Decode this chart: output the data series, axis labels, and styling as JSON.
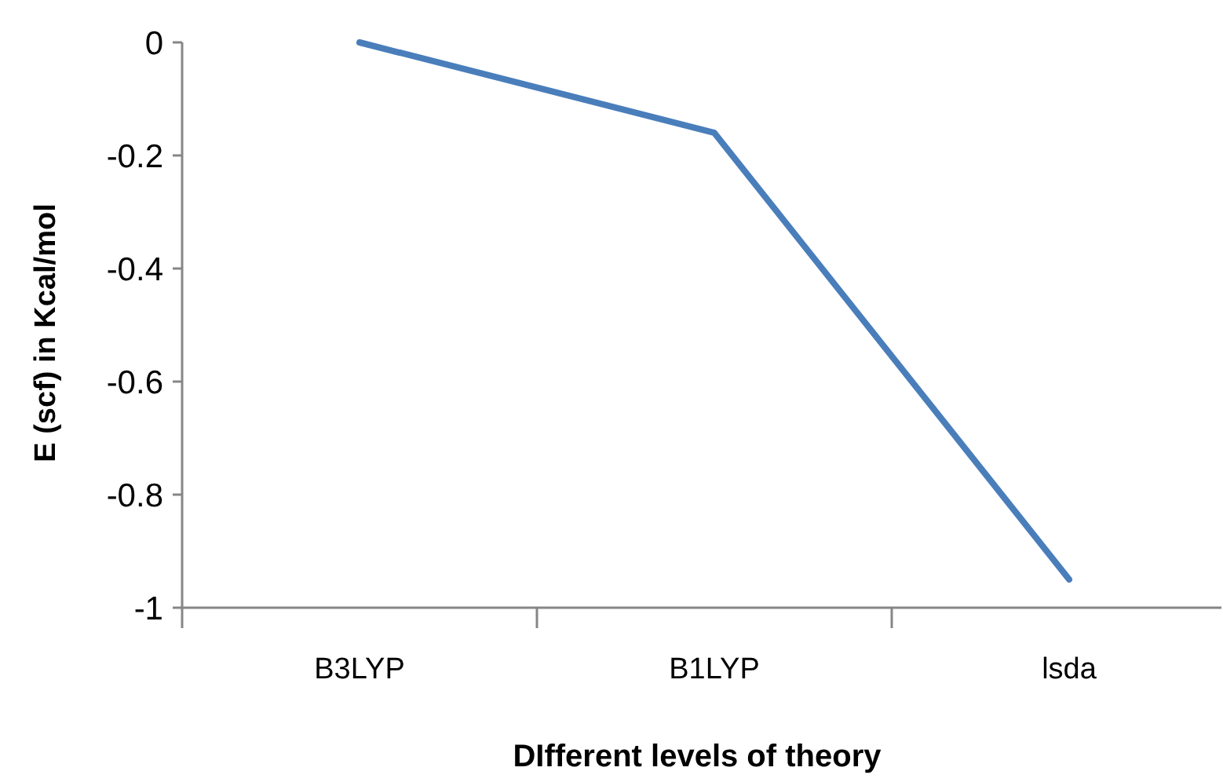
{
  "chart_data": {
    "type": "line",
    "xlabel": "DIfferent levels of theory",
    "ylabel": "E (scf) in Kcal/mol",
    "categories": [
      "B3LYP",
      "B1LYP",
      "lsda"
    ],
    "series": [
      {
        "color": "#4a7ebb",
        "values": [
          0,
          -0.16,
          -0.95
        ]
      }
    ],
    "ylim": [
      -1,
      0
    ],
    "yticks": [
      0,
      -0.2,
      -0.4,
      -0.6,
      -0.8,
      -1
    ],
    "grid": false,
    "marker": "none",
    "line_style": "solid"
  }
}
